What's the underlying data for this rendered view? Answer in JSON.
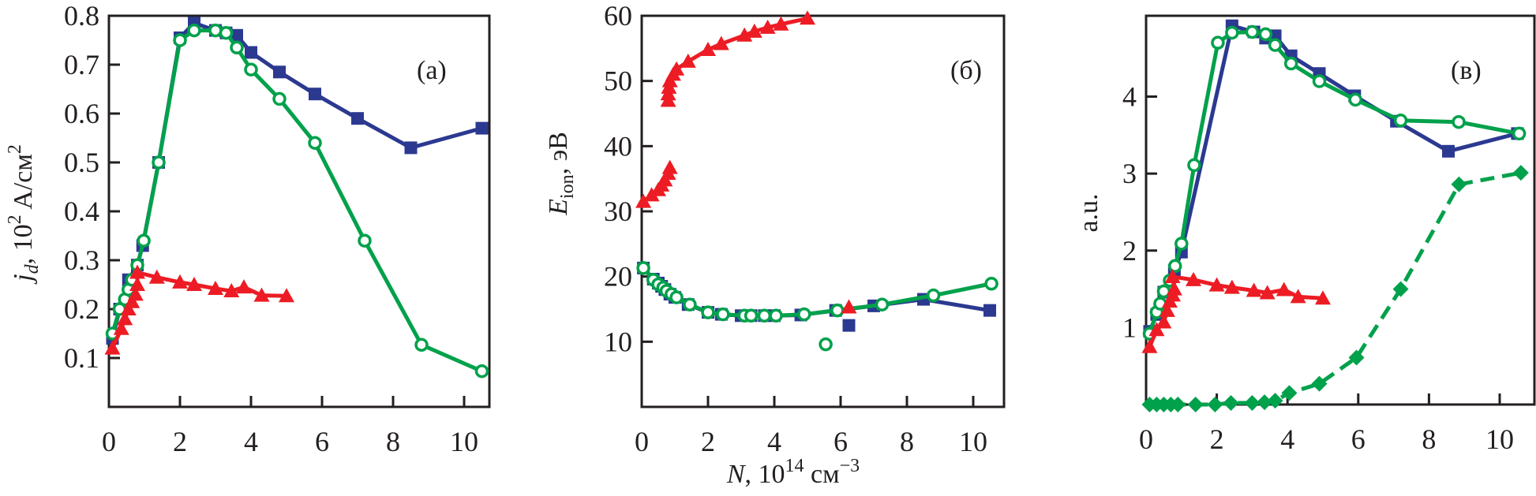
{
  "chart_data": [
    {
      "type": "line",
      "panel_label": "(a)",
      "title": "",
      "xlabel": "",
      "ylabel": "j_d, 10^2 A/cm^2",
      "ylabel_parts": {
        "main": "j",
        "sub": "d",
        "rest": ", 10",
        "sup": "2",
        "unit": " A/см",
        "unit_sup": "2"
      },
      "xlim": [
        0,
        11.0
      ],
      "ylim": [
        0,
        0.8
      ],
      "xticks": [
        0,
        2,
        4,
        6,
        8,
        10
      ],
      "yticks": [
        0.1,
        0.2,
        0.3,
        0.4,
        0.5,
        0.6,
        0.7,
        0.8
      ],
      "xtick_labels": [
        "0",
        "2",
        "4",
        "6",
        "8",
        "10"
      ],
      "ytick_labels": [
        "0.1",
        "0.2",
        "0.3",
        "0.4",
        "0.5",
        "0.6",
        "0.7",
        "0.8"
      ],
      "grid": false,
      "legend": "none",
      "series": [
        {
          "name": "blue-squares",
          "color": "#2b3990",
          "marker": "square",
          "line": "solid",
          "x": [
            0.1,
            0.3,
            0.55,
            0.8,
            0.95,
            1.4,
            2.0,
            2.4,
            3.0,
            3.3,
            3.6,
            4.0,
            4.8,
            5.8,
            7.0,
            8.5,
            10.5
          ],
          "y": [
            0.14,
            0.2,
            0.26,
            0.29,
            0.33,
            0.5,
            0.755,
            0.785,
            0.77,
            0.765,
            0.76,
            0.725,
            0.685,
            0.64,
            0.59,
            0.53,
            0.57
          ]
        },
        {
          "name": "green-circles",
          "color": "#00a14b",
          "marker": "open-circle",
          "line": "solid",
          "x": [
            0.1,
            0.3,
            0.45,
            0.55,
            0.65,
            0.8,
            0.98,
            1.4,
            2.0,
            2.4,
            3.0,
            3.3,
            3.6,
            4.0,
            4.8,
            5.8,
            7.2,
            8.8,
            10.5
          ],
          "y": [
            0.15,
            0.2,
            0.22,
            0.24,
            0.26,
            0.29,
            0.34,
            0.5,
            0.75,
            0.77,
            0.77,
            0.765,
            0.735,
            0.69,
            0.63,
            0.54,
            0.34,
            0.127,
            0.073
          ]
        },
        {
          "name": "red-triangles",
          "color": "#ed1c24",
          "marker": "triangle",
          "line": "solid",
          "x": [
            0.1,
            0.35,
            0.45,
            0.55,
            0.65,
            0.75,
            0.8,
            0.8,
            1.35,
            2.0,
            2.4,
            3.0,
            3.45,
            3.8,
            4.3,
            5.0
          ],
          "y": [
            0.12,
            0.16,
            0.18,
            0.2,
            0.215,
            0.23,
            0.25,
            0.275,
            0.265,
            0.255,
            0.25,
            0.242,
            0.237,
            0.245,
            0.228,
            0.227
          ]
        }
      ]
    },
    {
      "type": "line",
      "panel_label": "(б)",
      "title": "",
      "xlabel": "N, 10^14 cm^-3",
      "xlabel_parts": {
        "main": "N",
        "rest": ", 10",
        "sup": "14",
        "unit": " см",
        "unit_sup": "−3"
      },
      "ylabel": "E_ion, эВ",
      "ylabel_parts": {
        "main": "E",
        "sub": "ion",
        "unit": ", эВ"
      },
      "xlim": [
        0,
        11.0
      ],
      "ylim": [
        0,
        60
      ],
      "xticks": [
        0,
        2,
        4,
        6,
        8,
        10
      ],
      "yticks": [
        10,
        20,
        30,
        40,
        50,
        60
      ],
      "xtick_labels": [
        "0",
        "2",
        "4",
        "6",
        "8",
        "10"
      ],
      "ytick_labels": [
        "10",
        "20",
        "30",
        "40",
        "50",
        "60"
      ],
      "grid": false,
      "legend": "none",
      "series": [
        {
          "name": "red-triangles-upper",
          "color": "#ed1c24",
          "marker": "triangle",
          "line": "solid",
          "x": [
            0.8,
            0.8,
            0.82,
            0.85,
            0.95,
            1.05,
            1.4,
            2.0,
            2.4,
            3.1,
            3.4,
            3.8,
            4.2,
            5.0
          ],
          "y": [
            47,
            48,
            49,
            50,
            51,
            51.8,
            53,
            54.8,
            55.7,
            57,
            57.6,
            58.2,
            58.7,
            59.6
          ]
        },
        {
          "name": "red-triangles-lower",
          "color": "#ed1c24",
          "marker": "triangle",
          "line": "solid",
          "x": [
            0.05,
            0.3,
            0.5,
            0.6,
            0.7,
            0.8,
            0.85
          ],
          "y": [
            31.5,
            32.5,
            33.3,
            34.0,
            34.8,
            35.8,
            36.7
          ]
        },
        {
          "name": "blue-squares",
          "color": "#2b3990",
          "marker": "square",
          "line": "solid",
          "x": [
            0.05,
            0.35,
            0.5,
            0.6,
            0.7,
            0.85,
            1.0,
            1.4,
            2.0,
            2.4,
            3.0,
            3.3,
            3.7,
            4.0,
            4.8,
            5.85,
            7.0,
            8.5,
            10.5
          ],
          "y": [
            21.3,
            19.6,
            19.0,
            18.5,
            18.0,
            17.3,
            16.8,
            15.7,
            14.5,
            14.2,
            14.0,
            14.0,
            14.0,
            14.0,
            14.1,
            14.8,
            15.5,
            16.5,
            14.8
          ]
        },
        {
          "name": "green-circles",
          "color": "#00a14b",
          "marker": "open-circle",
          "line": "solid",
          "x": [
            0.05,
            0.35,
            0.5,
            0.65,
            0.75,
            0.9,
            1.05,
            1.45,
            2.0,
            2.45,
            3.1,
            3.3,
            3.7,
            4.05,
            4.9,
            5.9,
            7.25,
            8.8,
            10.55
          ],
          "y": [
            21.3,
            19.5,
            18.8,
            18.3,
            17.8,
            17.3,
            16.8,
            15.7,
            14.5,
            14.2,
            14.0,
            14.0,
            14.0,
            14.0,
            14.2,
            14.8,
            15.7,
            17.1,
            18.9
          ]
        },
        {
          "name": "blue-square-outlier",
          "color": "#2b3990",
          "marker": "square",
          "line": "none",
          "x": [
            6.25
          ],
          "y": [
            12.5
          ]
        },
        {
          "name": "green-circle-outlier",
          "color": "#00a14b",
          "marker": "open-circle",
          "line": "none",
          "x": [
            5.55
          ],
          "y": [
            9.6
          ]
        },
        {
          "name": "red-triangle-outlier",
          "color": "#ed1c24",
          "marker": "triangle",
          "line": "none",
          "x": [
            6.25
          ],
          "y": [
            15.3
          ]
        }
      ]
    },
    {
      "type": "line",
      "panel_label": "(в)",
      "title": "",
      "xlabel": "",
      "ylabel": "a.u.",
      "xlim": [
        0,
        11.0
      ],
      "ylim": [
        0,
        5.05
      ],
      "xticks": [
        0,
        2,
        4,
        6,
        8,
        10
      ],
      "yticks": [
        1,
        2,
        3,
        4
      ],
      "xtick_labels": [
        "0",
        "2",
        "4",
        "6",
        "8",
        "10"
      ],
      "ytick_labels": [
        "1",
        "2",
        "3",
        "4"
      ],
      "grid": false,
      "legend": "none",
      "series": [
        {
          "name": "blue-squares",
          "color": "#2b3990",
          "marker": "square",
          "line": "solid",
          "x": [
            0.1,
            0.3,
            0.5,
            0.8,
            1.0,
            2.43,
            3.05,
            3.38,
            3.65,
            4.1,
            4.9,
            5.9,
            7.08,
            8.55,
            10.5
          ],
          "y": [
            0.95,
            1.17,
            1.46,
            1.74,
            1.98,
            4.92,
            4.84,
            4.76,
            4.79,
            4.53,
            4.3,
            4.01,
            3.68,
            3.29,
            3.52
          ]
        },
        {
          "name": "green-circles",
          "color": "#00a14b",
          "marker": "open-circle",
          "line": "solid",
          "x": [
            0.1,
            0.3,
            0.4,
            0.5,
            0.67,
            0.82,
            1.0,
            1.36,
            2.03,
            2.43,
            3.0,
            3.38,
            3.65,
            4.1,
            4.9,
            5.92,
            7.2,
            8.84,
            10.55
          ],
          "y": [
            0.92,
            1.2,
            1.31,
            1.47,
            1.61,
            1.8,
            2.09,
            3.11,
            4.7,
            4.83,
            4.84,
            4.81,
            4.67,
            4.43,
            4.2,
            3.96,
            3.69,
            3.67,
            3.52
          ]
        },
        {
          "name": "red-triangles",
          "color": "#ed1c24",
          "marker": "triangle",
          "line": "solid",
          "x": [
            0.1,
            0.3,
            0.5,
            0.6,
            0.67,
            0.76,
            0.8,
            0.75,
            1.34,
            2.0,
            2.43,
            3.05,
            3.43,
            3.9,
            4.3,
            5.0
          ],
          "y": [
            0.75,
            0.97,
            1.07,
            1.22,
            1.34,
            1.42,
            1.5,
            1.66,
            1.62,
            1.55,
            1.52,
            1.48,
            1.45,
            1.49,
            1.4,
            1.38
          ]
        },
        {
          "name": "green-diamonds",
          "color": "#00a14b",
          "marker": "diamond",
          "line": "dashed",
          "x": [
            0.1,
            0.3,
            0.5,
            0.7,
            0.9,
            1.4,
            1.95,
            2.4,
            3.0,
            3.35,
            3.65,
            4.05,
            4.9,
            5.95,
            7.2,
            8.85,
            10.6
          ],
          "y": [
            0,
            0,
            0,
            0,
            0,
            0,
            0,
            0.02,
            0.02,
            0.03,
            0.05,
            0.15,
            0.27,
            0.61,
            1.5,
            2.86,
            3.01
          ]
        }
      ]
    }
  ]
}
